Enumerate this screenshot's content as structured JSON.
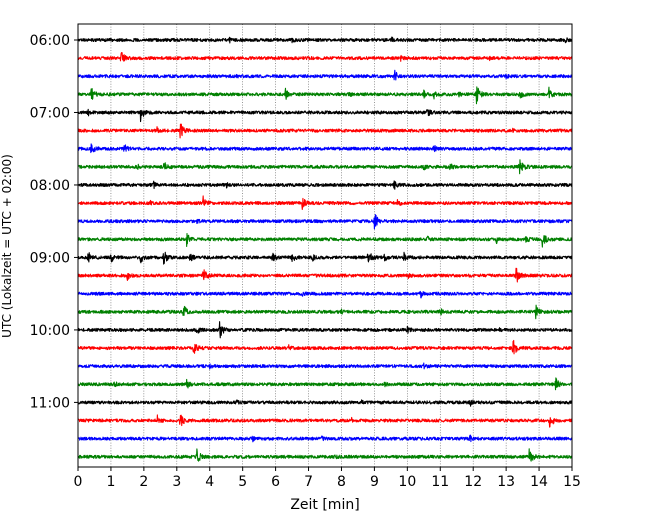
{
  "chart_data": {
    "type": "line",
    "title": "",
    "xlabel": "Zeit  [min]",
    "ylabel": "UTC (Lokalzeit = UTC + 02:00)",
    "xlim": [
      0,
      15
    ],
    "x_ticks": [
      0,
      1,
      2,
      3,
      4,
      5,
      6,
      7,
      8,
      9,
      10,
      11,
      12,
      13,
      14,
      15
    ],
    "x_tick_labels": [
      "0",
      "1",
      "2",
      "3",
      "4",
      "5",
      "6",
      "7",
      "8",
      "9",
      "10",
      "11",
      "12",
      "13",
      "14",
      "15"
    ],
    "y_tick_labels": [
      "06:00",
      "07:00",
      "08:00",
      "09:00",
      "10:00",
      "11:00"
    ],
    "y_tick_rows": [
      0,
      4,
      8,
      12,
      16,
      20
    ],
    "grid": "vertical dotted",
    "row_interval_min": 15,
    "start_utc": "06:00",
    "color_cycle": [
      "#000000",
      "#ff0000",
      "#0000ff",
      "#008000"
    ],
    "series": [
      {
        "start": "06:00",
        "color": "#000000",
        "events": [
          [
            4.6,
            0.25
          ],
          [
            9.5,
            0.3
          ],
          [
            14.8,
            0.2
          ],
          [
            6.5,
            0.2
          ]
        ]
      },
      {
        "start": "06:15",
        "color": "#ff0000",
        "events": [
          [
            1.3,
            0.8
          ],
          [
            9.8,
            0.2
          ],
          [
            12.5,
            0.15
          ]
        ]
      },
      {
        "start": "06:30",
        "color": "#0000ff",
        "events": [
          [
            9.6,
            0.7
          ],
          [
            13.0,
            0.15
          ],
          [
            4.8,
            0.15
          ]
        ]
      },
      {
        "start": "06:45",
        "color": "#008000",
        "events": [
          [
            0.4,
            0.7
          ],
          [
            6.3,
            0.5
          ],
          [
            12.1,
            0.9
          ],
          [
            13.4,
            0.6
          ],
          [
            14.3,
            0.6
          ],
          [
            10.8,
            0.4
          ],
          [
            11.5,
            0.4
          ],
          [
            8.2,
            0.3
          ],
          [
            10.5,
            0.3
          ]
        ]
      },
      {
        "start": "07:00",
        "color": "#000000",
        "events": [
          [
            1.9,
            0.9
          ],
          [
            10.6,
            0.5
          ],
          [
            0.3,
            0.3
          ]
        ]
      },
      {
        "start": "07:15",
        "color": "#ff0000",
        "events": [
          [
            3.1,
            0.8
          ],
          [
            2.4,
            0.25
          ],
          [
            13.2,
            0.1
          ]
        ]
      },
      {
        "start": "07:30",
        "color": "#0000ff",
        "events": [
          [
            0.4,
            0.7
          ],
          [
            1.4,
            0.5
          ],
          [
            10.8,
            0.4
          ]
        ]
      },
      {
        "start": "07:45",
        "color": "#008000",
        "events": [
          [
            2.6,
            0.7
          ],
          [
            13.4,
            0.8
          ],
          [
            10.5,
            0.4
          ],
          [
            11.3,
            0.35
          ],
          [
            1.8,
            0.25
          ]
        ]
      },
      {
        "start": "08:00",
        "color": "#000000",
        "events": [
          [
            9.6,
            0.45
          ],
          [
            2.3,
            0.3
          ],
          [
            4.5,
            0.2
          ]
        ]
      },
      {
        "start": "08:15",
        "color": "#ff0000",
        "events": [
          [
            3.8,
            0.6
          ],
          [
            6.8,
            0.65
          ],
          [
            9.7,
            0.4
          ],
          [
            2.2,
            0.2
          ]
        ]
      },
      {
        "start": "08:30",
        "color": "#0000ff",
        "events": [
          [
            9.0,
            0.85
          ],
          [
            3.6,
            0.2
          ]
        ]
      },
      {
        "start": "08:45",
        "color": "#008000",
        "events": [
          [
            3.3,
            0.6
          ],
          [
            14.1,
            0.8
          ],
          [
            12.7,
            0.35
          ],
          [
            13.6,
            0.35
          ],
          [
            10.6,
            0.3
          ]
        ]
      },
      {
        "start": "09:00",
        "color": "#000000",
        "events": [
          [
            8.8,
            0.8
          ],
          [
            0.3,
            0.6
          ],
          [
            1.0,
            0.5
          ],
          [
            1.9,
            0.55
          ],
          [
            2.6,
            0.75
          ],
          [
            3.4,
            0.45
          ],
          [
            5.9,
            0.55
          ],
          [
            6.5,
            0.5
          ],
          [
            7.1,
            0.4
          ],
          [
            9.3,
            0.45
          ],
          [
            9.9,
            0.5
          ]
        ]
      },
      {
        "start": "09:15",
        "color": "#ff0000",
        "events": [
          [
            3.8,
            0.75
          ],
          [
            13.3,
            0.85
          ],
          [
            1.5,
            0.45
          ],
          [
            10.0,
            0.3
          ]
        ]
      },
      {
        "start": "09:30",
        "color": "#0000ff",
        "events": [
          [
            10.4,
            0.4
          ],
          [
            6.8,
            0.2
          ]
        ]
      },
      {
        "start": "09:45",
        "color": "#008000",
        "events": [
          [
            3.2,
            0.7
          ],
          [
            13.9,
            0.7
          ],
          [
            11.0,
            0.35
          ],
          [
            8.0,
            0.2
          ]
        ]
      },
      {
        "start": "10:00",
        "color": "#000000",
        "events": [
          [
            4.3,
            0.85
          ],
          [
            3.6,
            0.45
          ],
          [
            10.0,
            0.5
          ],
          [
            12.8,
            0.2
          ]
        ]
      },
      {
        "start": "10:15",
        "color": "#ff0000",
        "events": [
          [
            3.5,
            0.8
          ],
          [
            13.2,
            0.9
          ],
          [
            6.4,
            0.2
          ]
        ]
      },
      {
        "start": "10:30",
        "color": "#0000ff",
        "events": [
          [
            10.5,
            0.3
          ],
          [
            4.0,
            0.15
          ]
        ]
      },
      {
        "start": "10:45",
        "color": "#008000",
        "events": [
          [
            3.3,
            0.5
          ],
          [
            14.5,
            0.7
          ],
          [
            1.1,
            0.3
          ],
          [
            9.3,
            0.2
          ]
        ]
      },
      {
        "start": "11:00",
        "color": "#000000",
        "events": [
          [
            11.9,
            0.45
          ],
          [
            4.8,
            0.25
          ],
          [
            8.6,
            0.2
          ]
        ]
      },
      {
        "start": "11:15",
        "color": "#ff0000",
        "events": [
          [
            3.1,
            0.75
          ],
          [
            14.3,
            0.85
          ],
          [
            2.4,
            0.5
          ],
          [
            8.3,
            0.2
          ]
        ]
      },
      {
        "start": "11:30",
        "color": "#0000ff",
        "events": [
          [
            11.9,
            0.35
          ],
          [
            5.3,
            0.25
          ],
          [
            7.4,
            0.15
          ]
        ]
      },
      {
        "start": "11:45",
        "color": "#008000",
        "events": [
          [
            3.6,
            0.8
          ],
          [
            13.7,
            0.8
          ],
          [
            7.8,
            0.2
          ]
        ]
      }
    ]
  }
}
